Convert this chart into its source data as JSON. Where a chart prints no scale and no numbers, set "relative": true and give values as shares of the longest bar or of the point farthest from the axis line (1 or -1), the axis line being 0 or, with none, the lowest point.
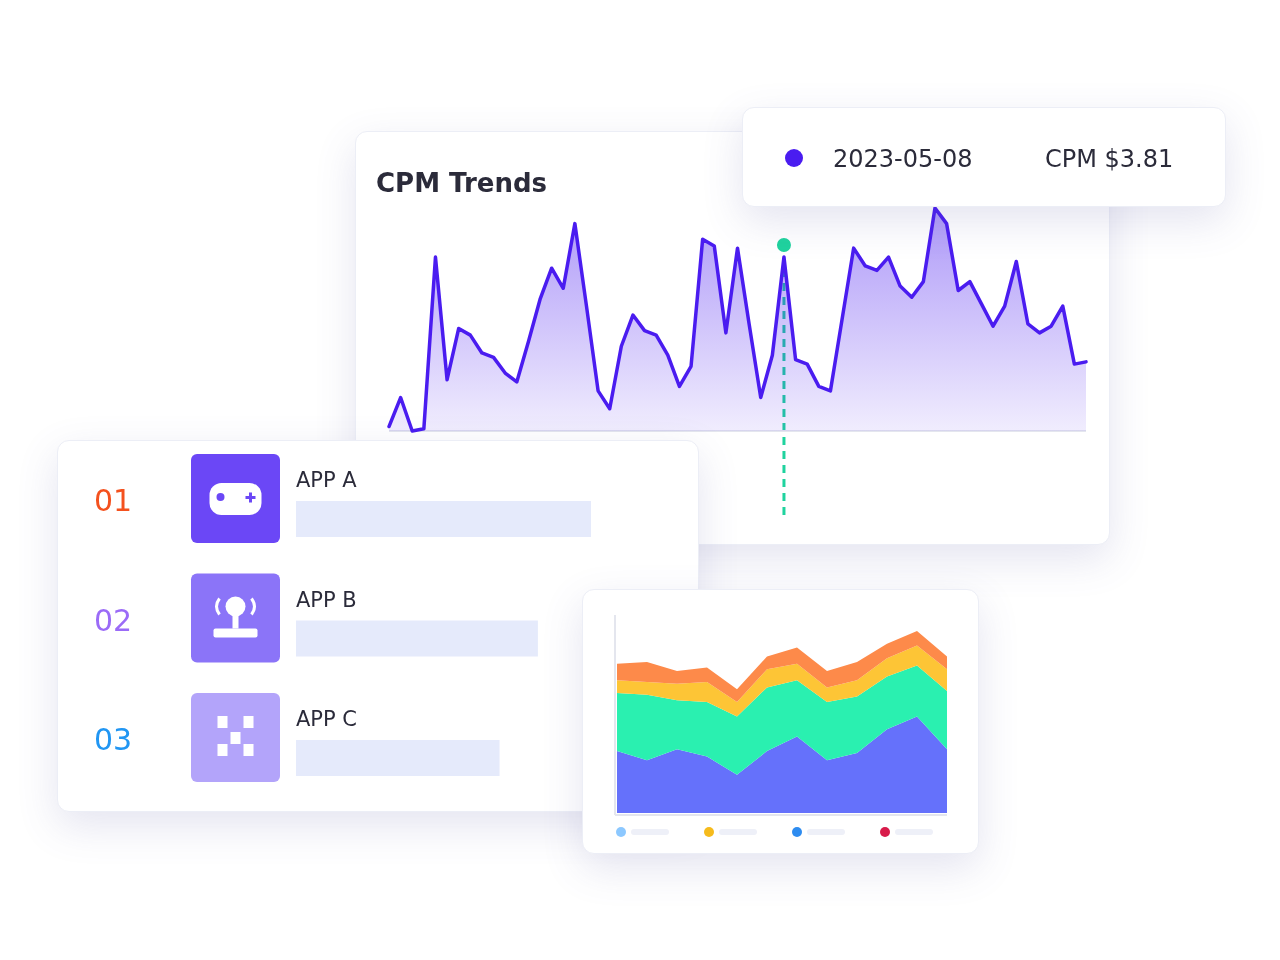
{
  "chart_data": [
    {
      "type": "area",
      "title": "CPM Trends",
      "relative": true,
      "color": "#4a1cf0",
      "categories": [
        null,
        null,
        null,
        null,
        null,
        null,
        null,
        null,
        null,
        null,
        null,
        null,
        null,
        null,
        null,
        null,
        null,
        null,
        null,
        null,
        null,
        null,
        null,
        null,
        null,
        null,
        null,
        null,
        null,
        null,
        null,
        null,
        null,
        null,
        null,
        null,
        null,
        null,
        null,
        null,
        null,
        null,
        null,
        null,
        null,
        null,
        null,
        null,
        null,
        null,
        null,
        null,
        null,
        null,
        null,
        null,
        null,
        null,
        null,
        null,
        null
      ],
      "values": [
        0.02,
        0.15,
        0,
        0.01,
        0.78,
        0.23,
        0.46,
        0.43,
        0.35,
        0.33,
        0.26,
        0.22,
        0.4,
        0.59,
        0.73,
        0.64,
        0.93,
        0.56,
        0.18,
        0.1,
        0.38,
        0.52,
        0.45,
        0.43,
        0.34,
        0.2,
        0.29,
        0.86,
        0.83,
        0.44,
        0.82,
        0.48,
        0.15,
        0.34,
        0.78,
        0.32,
        0.3,
        0.2,
        0.18,
        0.5,
        0.82,
        0.74,
        0.72,
        0.78,
        0.65,
        0.6,
        0.67,
        1,
        0.93,
        0.63,
        0.67,
        0.57,
        0.47,
        0.56,
        0.76,
        0.48,
        0.44,
        0.47,
        0.56,
        0.3,
        0.31
      ],
      "annotations": [
        "2023-05-08",
        "CPM $3.81"
      ]
    },
    {
      "type": "bar",
      "orientation": "horizontal",
      "relative": true,
      "categories": [
        "APP A",
        "APP B",
        "APP C"
      ],
      "values": [
        1,
        0.82,
        0.69
      ],
      "annotations": [
        "01",
        "02",
        "03"
      ],
      "color": "#e5eafb"
    },
    {
      "type": "area",
      "stacked": true,
      "relative": true,
      "categories": [
        null,
        null,
        null,
        null,
        null,
        null,
        null,
        null,
        null,
        null,
        null,
        null
      ],
      "series": [
        {
          "color": "#6571fb",
          "values": [
            0.34,
            0.29,
            0.35,
            0.31,
            0.21,
            0.34,
            0.42,
            0.29,
            0.33,
            0.46,
            0.53,
            0.35
          ]
        },
        {
          "color": "#2af0b0",
          "values": [
            0.32,
            0.36,
            0.27,
            0.3,
            0.32,
            0.35,
            0.31,
            0.32,
            0.31,
            0.29,
            0.28,
            0.32
          ]
        },
        {
          "color": "#fdc536",
          "values": [
            0.07,
            0.07,
            0.09,
            0.11,
            0.08,
            0.1,
            0.09,
            0.08,
            0.09,
            0.1,
            0.11,
            0.12
          ]
        },
        {
          "color": "#fd8a4a",
          "values": [
            0.09,
            0.11,
            0.07,
            0.08,
            0.07,
            0.07,
            0.09,
            0.09,
            0.1,
            0.08,
            0.08,
            0.07
          ]
        }
      ]
    }
  ]
}
